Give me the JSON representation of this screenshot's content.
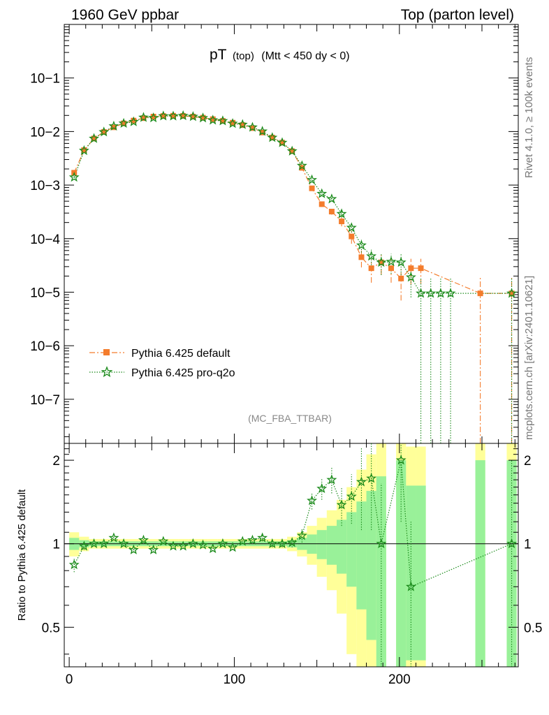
{
  "header": {
    "left": "1960 GeV ppbar",
    "right": "Top (parton level)"
  },
  "side_labels": {
    "rivet": "Rivet 4.1.0, ≥ 100k events",
    "mcplots": "mcplots.cern.ch [arXiv:2401.10621]"
  },
  "chart_data": [
    {
      "type": "line",
      "panel": "main",
      "title": "pT (top) (Mtt < 450 dy < 0)",
      "title_main": "pT",
      "title_sub": "(top)",
      "title_cut": "(Mtt < 450 dy < 0)",
      "watermark": "(MC_FBA_TTBAR)",
      "y_scale": "log",
      "ylim": [
        1.5e-08,
        1.0
      ],
      "xlim": [
        -3,
        272
      ],
      "y_tick_labels": [
        "10−7",
        "10−6",
        "10−5",
        "10−4",
        "10−3",
        "10−2",
        "10−1"
      ],
      "y_tick_values": [
        1e-07,
        1e-06,
        1e-05,
        0.0001,
        0.001,
        0.01,
        0.1
      ],
      "legend_position": "bottom-left",
      "series": [
        {
          "name": "Pythia 6.425 default",
          "color": "#f47c2c",
          "marker": "square",
          "style": "dash-dot",
          "x": [
            3,
            9,
            15,
            21,
            27,
            33,
            39,
            45,
            51,
            57,
            63,
            69,
            75,
            81,
            87,
            93,
            99,
            105,
            111,
            117,
            123,
            129,
            135,
            141,
            147,
            153,
            159,
            165,
            171,
            177,
            183,
            189,
            195,
            201,
            207,
            213,
            249,
            268
          ],
          "y": [
            0.0017,
            0.0045,
            0.0074,
            0.0098,
            0.012,
            0.0142,
            0.016,
            0.0178,
            0.019,
            0.0195,
            0.0197,
            0.0196,
            0.019,
            0.0181,
            0.017,
            0.0158,
            0.0146,
            0.0132,
            0.0116,
            0.0096,
            0.0077,
            0.0062,
            0.0043,
            0.0021,
            0.00087,
            0.00044,
            0.00032,
            0.00021,
            0.00011,
            4.5e-05,
            2.8e-05,
            3.6e-05,
            2.8e-05,
            1.8e-05,
            2.8e-05,
            2.8e-05,
            9.5e-06,
            9.5e-06
          ],
          "yerr": [
            5e-05,
            0.0001,
            0.0001,
            0.0001,
            0.0001,
            0.0001,
            0.0001,
            0.0001,
            0.0001,
            0.0001,
            0.0001,
            0.0001,
            0.0001,
            0.0001,
            0.0001,
            0.0001,
            0.0001,
            0.0001,
            0.0001,
            0.0001,
            0.0001,
            0.0001,
            0.0001,
            6e-05,
            5e-05,
            5e-05,
            4e-05,
            4e-05,
            3e-05,
            1.6e-05,
            1.3e-05,
            1.5e-05,
            1.3e-05,
            1.1e-05,
            1.4e-05,
            1.4e-05,
            9.5e-06,
            9.5e-06
          ]
        },
        {
          "name": "Pythia 6.425 pro-q2o",
          "color": "#1a8a1a",
          "marker": "star",
          "style": "dotted",
          "x": [
            3,
            9,
            15,
            21,
            27,
            33,
            39,
            45,
            51,
            57,
            63,
            69,
            75,
            81,
            87,
            93,
            99,
            105,
            111,
            117,
            123,
            129,
            135,
            141,
            147,
            153,
            159,
            165,
            171,
            177,
            183,
            189,
            195,
            201,
            207,
            213,
            219,
            225,
            231,
            268
          ],
          "y": [
            0.0014,
            0.0044,
            0.0074,
            0.0098,
            0.0126,
            0.0142,
            0.0152,
            0.0183,
            0.018,
            0.0195,
            0.0194,
            0.0197,
            0.019,
            0.0179,
            0.0163,
            0.0158,
            0.0141,
            0.0135,
            0.012,
            0.0101,
            0.0077,
            0.0062,
            0.0043,
            0.0023,
            0.00125,
            0.00069,
            0.00055,
            0.00029,
            0.00016,
            7.5e-05,
            4.7e-05,
            3.6e-05,
            3.7e-05,
            3.6e-05,
            1.9e-05,
            9.5e-06,
            9.5e-06,
            9.5e-06,
            9.5e-06,
            9.5e-06
          ],
          "yerr": [
            5e-05,
            0.0001,
            0.0001,
            0.0001,
            0.0001,
            0.0001,
            0.0001,
            0.0001,
            0.0001,
            0.0001,
            0.0001,
            0.0001,
            0.0001,
            0.0001,
            0.0001,
            0.0001,
            0.0001,
            0.0001,
            0.0001,
            0.0001,
            0.0001,
            0.0001,
            0.0001,
            7e-05,
            6e-05,
            5e-05,
            5e-05,
            4e-05,
            3e-05,
            2e-05,
            1.5e-05,
            1.5e-05,
            1.5e-05,
            1.5e-05,
            1.1e-05,
            9.5e-06,
            9.5e-06,
            9.5e-06,
            9.5e-06,
            9.5e-06
          ]
        }
      ]
    },
    {
      "type": "line",
      "panel": "ratio",
      "ylabel": "Ratio to Pythia 6.425 default",
      "y_scale": "log",
      "ylim": [
        0.36,
        2.3
      ],
      "xlim": [
        -3,
        272
      ],
      "y_tick_labels": [
        "0.5",
        "1",
        "2"
      ],
      "y_tick_values": [
        0.5,
        1,
        2
      ],
      "x_tick_labels": [
        "0",
        "100",
        "200"
      ],
      "x_tick_values": [
        0,
        100,
        200
      ],
      "reference_line": 1,
      "band_edges": [
        0,
        6,
        12,
        18,
        24,
        30,
        36,
        42,
        48,
        54,
        60,
        66,
        72,
        78,
        84,
        90,
        96,
        102,
        108,
        114,
        120,
        126,
        132,
        138,
        144,
        150,
        156,
        162,
        168,
        174,
        180,
        186,
        192,
        198,
        204,
        210,
        216
      ],
      "band_1sigma_half": [
        0.05,
        0.03,
        0.02,
        0.02,
        0.02,
        0.02,
        0.02,
        0.02,
        0.02,
        0.02,
        0.02,
        0.02,
        0.02,
        0.02,
        0.02,
        0.02,
        0.02,
        0.02,
        0.02,
        0.02,
        0.02,
        0.02,
        0.03,
        0.05,
        0.08,
        0.12,
        0.16,
        0.22,
        0.3,
        0.42,
        0.55,
        0.75,
        0.0,
        1.0,
        0.62,
        0.62
      ],
      "band_2sigma_half": [
        0.1,
        0.06,
        0.04,
        0.04,
        0.04,
        0.04,
        0.04,
        0.04,
        0.04,
        0.04,
        0.04,
        0.04,
        0.04,
        0.04,
        0.04,
        0.04,
        0.04,
        0.04,
        0.04,
        0.04,
        0.04,
        0.04,
        0.06,
        0.1,
        0.16,
        0.24,
        0.32,
        0.44,
        0.6,
        0.85,
        1.1,
        1.5,
        0.0,
        2.0,
        1.24,
        1.24
      ],
      "extra_bands": [
        {
          "x0": 246,
          "x1": 252,
          "half1": 1.0,
          "half2": 2.0
        },
        {
          "x0": 265,
          "x1": 271,
          "half1": 1.0,
          "half2": 2.0
        }
      ],
      "band_colors": {
        "one_sigma": "#99f199",
        "two_sigma": "#ffff99"
      },
      "series": [
        {
          "name": "Pythia 6.425 pro-q2o",
          "color": "#1a8a1a",
          "x": [
            3,
            9,
            15,
            21,
            27,
            33,
            39,
            45,
            51,
            57,
            63,
            69,
            75,
            81,
            87,
            93,
            99,
            105,
            111,
            117,
            123,
            129,
            135,
            141,
            147,
            153,
            159,
            165,
            171,
            177,
            183,
            189,
            201,
            207,
            268
          ],
          "y": [
            0.84,
            0.98,
            1.0,
            1.0,
            1.05,
            1.0,
            0.95,
            1.03,
            0.95,
            1.02,
            0.98,
            0.98,
            1.0,
            0.99,
            0.96,
            1.0,
            0.97,
            1.02,
            1.03,
            1.05,
            1.0,
            1.0,
            1.01,
            1.07,
            1.43,
            1.58,
            1.7,
            1.38,
            1.48,
            1.67,
            1.72,
            1.0,
            2.0,
            0.7,
            1.0
          ],
          "yerr": [
            0.05,
            0.03,
            0.02,
            0.02,
            0.02,
            0.02,
            0.02,
            0.02,
            0.02,
            0.02,
            0.02,
            0.02,
            0.02,
            0.02,
            0.02,
            0.02,
            0.02,
            0.02,
            0.02,
            0.03,
            0.03,
            0.03,
            0.04,
            0.06,
            0.1,
            0.14,
            0.18,
            0.22,
            0.3,
            0.55,
            0.6,
            0.65,
            0.8,
            0.5,
            1.0
          ]
        }
      ]
    }
  ]
}
